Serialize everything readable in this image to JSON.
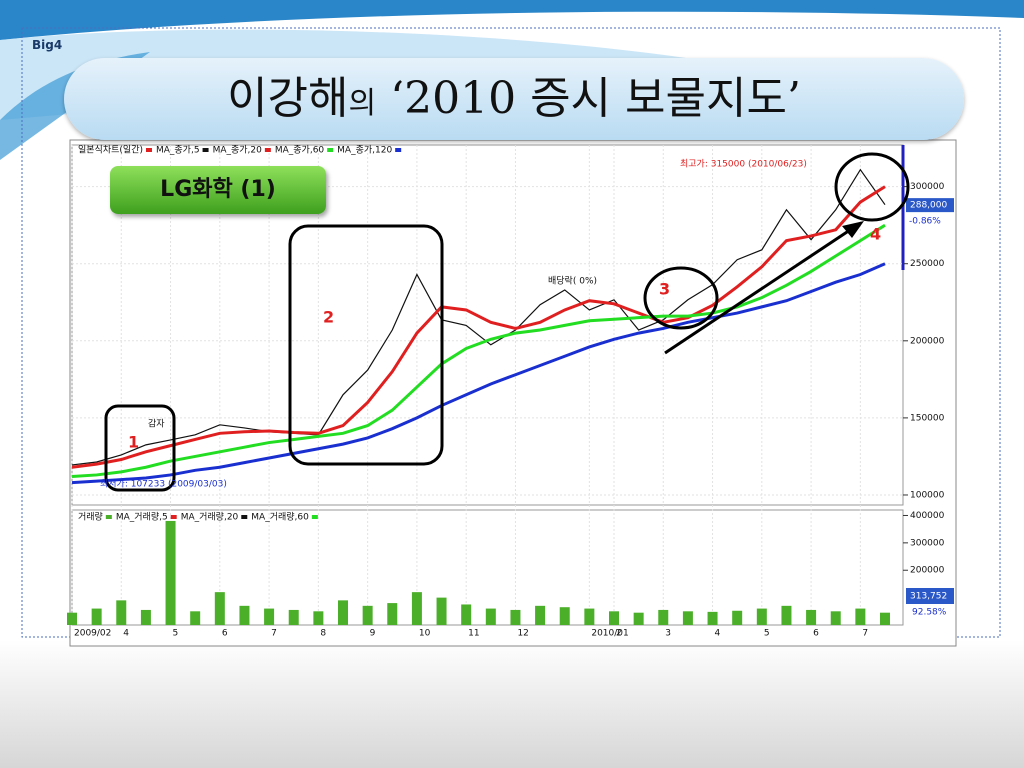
{
  "header": {
    "brand": "Big4",
    "title_main": "이강해",
    "title_particle": "의",
    "title_rest": "‘2010 증시 보물지도’"
  },
  "badge": "LG화학 (1)",
  "markers": [
    "1",
    "2",
    "3",
    "4"
  ],
  "chart_data": [
    {
      "type": "line",
      "title": "일본식차트(일간)",
      "title_color": "#e02020",
      "categories": [
        "2009/02",
        null,
        "4",
        null,
        "5",
        null,
        "6",
        null,
        "7",
        null,
        "8",
        null,
        "9",
        null,
        "10",
        null,
        "11",
        null,
        "12",
        null,
        null,
        "2010/01",
        "2",
        null,
        "3",
        null,
        "4",
        null,
        "5",
        null,
        "6",
        null,
        "7",
        null
      ],
      "series": [
        {
          "name": "MA_종가,5",
          "color": "#111111",
          "values": [
            119500,
            121400,
            126000,
            132500,
            135700,
            139000,
            145500,
            143500,
            141000,
            140000,
            139000,
            165000,
            181000,
            207000,
            243000,
            213600,
            210000,
            197400,
            207000,
            223400,
            233000,
            220000,
            226600,
            207000,
            213600,
            226600,
            236400,
            252600,
            259000,
            285000,
            265600,
            285000,
            311000,
            288300
          ]
        },
        {
          "name": "MA_종가,20",
          "color": "#e02020",
          "values": [
            118000,
            120000,
            123000,
            128000,
            132000,
            136000,
            140000,
            141000,
            141500,
            140500,
            140000,
            145000,
            160000,
            180000,
            205000,
            222000,
            220000,
            212000,
            208000,
            212000,
            220000,
            226000,
            224000,
            218000,
            212000,
            215000,
            223000,
            235000,
            248000,
            265000,
            268000,
            272000,
            290000,
            300000
          ]
        },
        {
          "name": "MA_종가,60",
          "color": "#22dd22",
          "values": [
            112000,
            113000,
            115000,
            118000,
            122000,
            125000,
            128000,
            131000,
            134000,
            136000,
            138000,
            140000,
            145000,
            155000,
            170000,
            185000,
            195000,
            201000,
            205000,
            207000,
            210000,
            213000,
            214000,
            215000,
            216000,
            216000,
            218000,
            222000,
            228000,
            236000,
            245000,
            255000,
            265000,
            275000
          ]
        },
        {
          "name": "MA_종가,120",
          "color": "#1a2fd0",
          "values": [
            108000,
            109000,
            110000,
            111000,
            113000,
            116000,
            118000,
            121000,
            124000,
            127000,
            130000,
            133000,
            137000,
            143000,
            150000,
            158000,
            165000,
            172000,
            178000,
            184000,
            190000,
            196000,
            201000,
            205000,
            208000,
            212000,
            215000,
            218000,
            222000,
            226000,
            232000,
            238000,
            243000,
            250000
          ]
        }
      ],
      "ylim": [
        93500,
        327000
      ],
      "yticks": [
        100000,
        150000,
        200000,
        250000,
        300000
      ],
      "grid": true,
      "current": {
        "value": 288000,
        "label": "288,000",
        "change": "-0.86%"
      },
      "annotations": [
        "최고가: 315000 (2010/06/23)",
        "배당락( 0%)",
        "감자",
        "최저가: 107233 (2009/03/03)"
      ]
    },
    {
      "type": "bar",
      "title": "거래량",
      "color": "#4caf2a",
      "legend": [
        {
          "name": "MA_거래량,5",
          "color": "#e02020"
        },
        {
          "name": "MA_거래량,20",
          "color": "#111111"
        },
        {
          "name": "MA_거래량,60",
          "color": "#22dd22"
        }
      ],
      "values": [
        45000,
        60000,
        90000,
        55000,
        380000,
        50000,
        120000,
        70000,
        60000,
        55000,
        50000,
        90000,
        70000,
        80000,
        120000,
        100000,
        75000,
        60000,
        55000,
        70000,
        65000,
        60000,
        50000,
        45000,
        55000,
        50000,
        48000,
        52000,
        60000,
        70000,
        55000,
        50000,
        60000,
        45000
      ],
      "ylim": [
        0,
        420000
      ],
      "yticks": [
        200000,
        300000,
        400000
      ],
      "current": {
        "label": "313,752",
        "ratio": "92.58%"
      }
    }
  ]
}
